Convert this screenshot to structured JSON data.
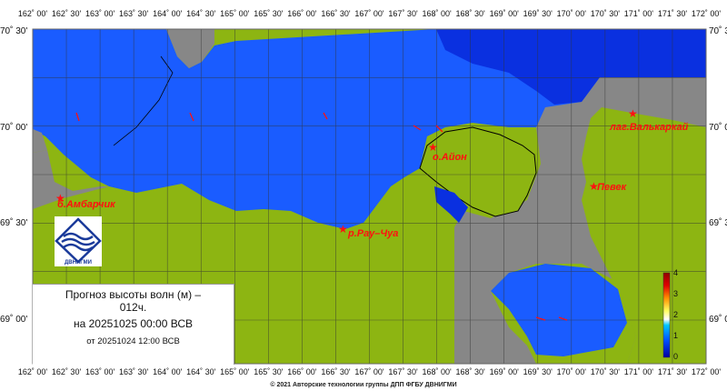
{
  "title": {
    "line1": "Прогноз высоты волн (м) –",
    "line1b": "012ч.",
    "line2": "на 20251025 00:00 ВСВ",
    "line3": "от 20251024 12:00 ВСВ"
  },
  "footer": "© 2021 Авторские технологии группы ДПП ФГБУ ДВНИГМИ",
  "logo_text": "ДВНИГМИ",
  "longitude_labels": [
    "162˚ 00'",
    "162˚ 30'",
    "163˚ 00'",
    "163˚ 30'",
    "164˚ 00'",
    "164˚ 30'",
    "165˚ 00'",
    "165˚ 30'",
    "166˚ 00'",
    "166˚ 30'",
    "167˚ 00'",
    "167˚ 30'",
    "168˚ 00'",
    "168˚ 30'",
    "169˚ 00'",
    "169˚ 30'",
    "170˚ 00'",
    "170˚ 30'",
    "171˚ 00'",
    "171˚ 30'",
    "172˚ 00'"
  ],
  "latitude_labels_left": [
    "70˚ 30'",
    "70˚ 00'",
    "69˚ 30'",
    "69˚ 00'"
  ],
  "latitude_labels_right": [
    "70˚ 3",
    "70˚ 0",
    "69˚ 3",
    "69˚ 0"
  ],
  "places": [
    {
      "name": "б.Амбарчик"
    },
    {
      "name": "р.Рау–Чуа"
    },
    {
      "name": "о.Айон"
    },
    {
      "name": "лаг.Валькаркай"
    },
    {
      "name": "Певек"
    }
  ],
  "colorbar": {
    "unit": "м",
    "ticks": [
      "0",
      "1",
      "2",
      "3",
      "4"
    ],
    "range": [
      0,
      4
    ],
    "colors": [
      "#0000a0",
      "#0050ff",
      "#00c8ff",
      "#ffffff",
      "#ffff60",
      "#ff9000",
      "#e00000",
      "#900000"
    ]
  },
  "colors": {
    "sea": "#1a5cff",
    "sea_deep": "#0a30e0",
    "land_model": "#8db512",
    "land_other": "#878787",
    "marker": "#ff1010"
  }
}
